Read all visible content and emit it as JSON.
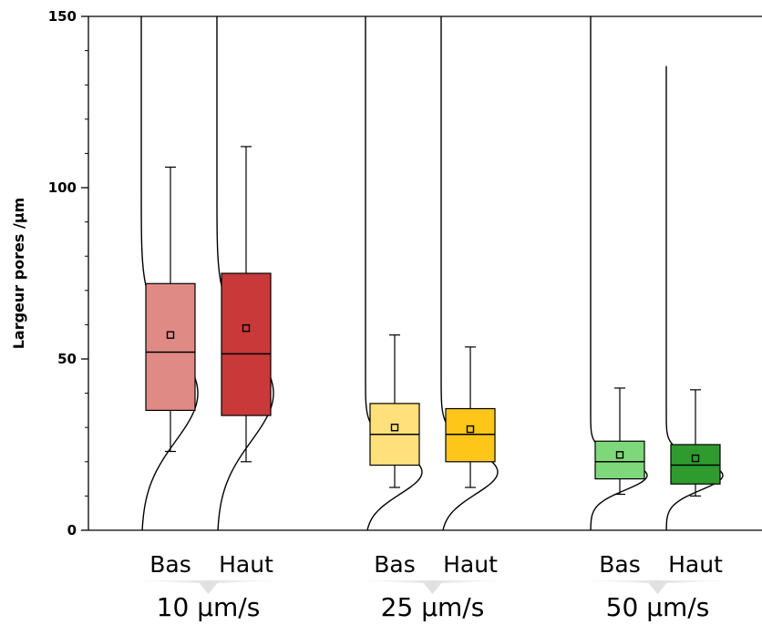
{
  "chart_data": {
    "type": "box",
    "ylabel": "Largeur pores /µm",
    "ylim": [
      0,
      150
    ],
    "yticks": [
      "0",
      "50",
      "100",
      "150"
    ],
    "groups": [
      {
        "label": "10 µm/s",
        "categories": [
          "Bas",
          "Haut"
        ]
      },
      {
        "label": "25 µm/s",
        "categories": [
          "Bas",
          "Haut"
        ]
      },
      {
        "label": "50 µm/s",
        "categories": [
          "Bas",
          "Haut"
        ]
      }
    ],
    "boxes": [
      {
        "group": "10 µm/s",
        "category": "Bas",
        "whisker_low": 23,
        "q1": 35,
        "median": 52,
        "q3": 72,
        "whisker_high": 106,
        "mean": 57,
        "color": "#e08a86",
        "dist_mean": 40,
        "dist_sd": 14,
        "dist_top": 150
      },
      {
        "group": "10 µm/s",
        "category": "Haut",
        "whisker_low": 20,
        "q1": 33.5,
        "median": 51.5,
        "q3": 75,
        "whisker_high": 112,
        "mean": 59,
        "color": "#c9393a",
        "dist_mean": 40,
        "dist_sd": 14,
        "dist_top": 150
      },
      {
        "group": "25 µm/s",
        "category": "Bas",
        "whisker_low": 12.5,
        "q1": 19,
        "median": 28,
        "q3": 37,
        "whisker_high": 57,
        "mean": 30,
        "color": "#ffe07a",
        "dist_mean": 17,
        "dist_sd": 6.5,
        "dist_top": 150
      },
      {
        "group": "25 µm/s",
        "category": "Haut",
        "whisker_low": 12.5,
        "q1": 20,
        "median": 28,
        "q3": 35.5,
        "whisker_high": 53.5,
        "mean": 29.5,
        "color": "#ffc61a",
        "dist_mean": 17,
        "dist_sd": 6.5,
        "dist_top": 150
      },
      {
        "group": "50 µm/s",
        "category": "Bas",
        "whisker_low": 10.5,
        "q1": 15,
        "median": 20,
        "q3": 26,
        "whisker_high": 41.5,
        "mean": 22,
        "color": "#7ed87a",
        "dist_mean": 16,
        "dist_sd": 4.3,
        "dist_top": 150
      },
      {
        "group": "50 µm/s",
        "category": "Haut",
        "whisker_low": 10,
        "q1": 13.5,
        "median": 19,
        "q3": 25,
        "whisker_high": 41,
        "mean": 21,
        "color": "#2f9b2f",
        "dist_mean": 16,
        "dist_sd": 4.3,
        "dist_top": 135.5
      }
    ]
  }
}
